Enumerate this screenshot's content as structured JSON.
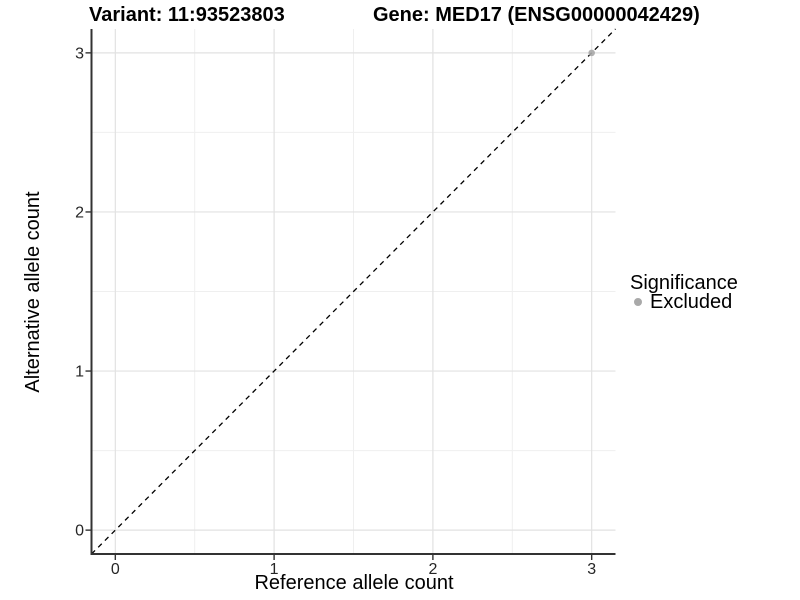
{
  "titles": {
    "variant": "Variant: 11:93523803",
    "gene": "Gene: MED17 (ENSG00000042429)"
  },
  "chart_data": {
    "type": "scatter",
    "title": "Variant: 11:93523803   Gene: MED17 (ENSG00000042429)",
    "xlabel": "Reference allele count",
    "ylabel": "Alternative allele count",
    "xlim": [
      -0.15,
      3.15
    ],
    "ylim": [
      -0.15,
      3.15
    ],
    "x_ticks": [
      0,
      1,
      2,
      3
    ],
    "y_ticks": [
      0,
      1,
      2,
      3
    ],
    "minor_ticks_x": [
      0.5,
      1.5,
      2.5
    ],
    "minor_ticks_y": [
      0.5,
      1.5,
      2.5
    ],
    "grid": true,
    "legend": {
      "title": "Significance",
      "position": "right",
      "entries": [
        {
          "label": "Excluded",
          "color": "#a9a9a9"
        }
      ]
    },
    "series": [
      {
        "name": "Excluded",
        "color": "#a9a9a9",
        "points": [
          {
            "x": 3,
            "y": 3
          }
        ]
      }
    ],
    "reference_line": {
      "type": "identity",
      "slope": 1,
      "intercept": 0,
      "style": "dashed",
      "color": "#000000"
    },
    "colors": {
      "grid_major": "#e2e2e2",
      "grid_minor": "#efefef",
      "axis_line": "#333333",
      "tick_label": "#262626",
      "point": "#a9a9a9"
    }
  }
}
